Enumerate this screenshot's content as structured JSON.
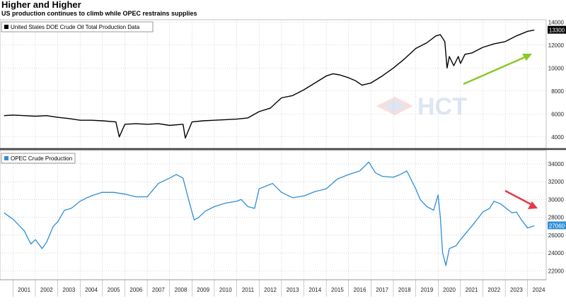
{
  "header": {
    "title": "Higher and Higher",
    "subtitle": "US production continues to climb while OPEC restrains supplies"
  },
  "watermark": {
    "text": "HCT"
  },
  "chart_data": [
    {
      "type": "line",
      "legend": "United States DOE Crude Oil Total Production Data",
      "color": "#000000",
      "last_value_label": "13300",
      "ylim": [
        3000,
        14200
      ],
      "yticks": [
        4000,
        6000,
        8000,
        10000,
        12000,
        14000
      ],
      "grid": true,
      "legend_position": "top-left",
      "trend_arrow": {
        "direction": "up",
        "color": "#8ac926"
      },
      "x": [
        2000.6,
        2001.0,
        2001.5,
        2002.0,
        2002.5,
        2003.0,
        2003.5,
        2004.0,
        2004.5,
        2005.0,
        2005.6,
        2005.75,
        2006.0,
        2006.5,
        2007.0,
        2007.5,
        2008.0,
        2008.6,
        2008.7,
        2009.0,
        2009.5,
        2010.0,
        2010.5,
        2011.0,
        2011.5,
        2012.0,
        2012.5,
        2013.0,
        2013.5,
        2014.0,
        2014.5,
        2015.0,
        2015.3,
        2015.6,
        2016.0,
        2016.3,
        2016.6,
        2017.0,
        2017.5,
        2018.0,
        2018.5,
        2019.0,
        2019.5,
        2019.9,
        2020.1,
        2020.3,
        2020.4,
        2020.5,
        2020.7,
        2020.9,
        2021.0,
        2021.2,
        2021.5,
        2022.0,
        2022.5,
        2023.0,
        2023.5,
        2024.0,
        2024.3
      ],
      "y": [
        5850,
        5900,
        5850,
        5800,
        5850,
        5700,
        5600,
        5450,
        5450,
        5400,
        5300,
        4000,
        5100,
        5150,
        5100,
        5150,
        5000,
        5100,
        3900,
        5300,
        5400,
        5450,
        5500,
        5550,
        5650,
        6200,
        6500,
        7400,
        7600,
        8100,
        8700,
        9300,
        9500,
        9400,
        9150,
        8900,
        8500,
        8700,
        9300,
        10000,
        10800,
        11700,
        12200,
        12800,
        12900,
        12300,
        10000,
        11000,
        10200,
        11000,
        10400,
        11200,
        11300,
        11800,
        12100,
        12300,
        12800,
        13200,
        13300
      ]
    },
    {
      "type": "line",
      "legend": "OPEC Crude Production",
      "color": "#2e8fd6",
      "last_value_label": "27060",
      "ylim": [
        21000,
        35500
      ],
      "yticks": [
        22000,
        24000,
        26000,
        28000,
        30000,
        32000,
        34000
      ],
      "grid": true,
      "legend_position": "top-left",
      "trend_arrow": {
        "direction": "down",
        "color": "#e63946"
      },
      "x": [
        2000.6,
        2001.0,
        2001.5,
        2001.8,
        2002.0,
        2002.3,
        2002.5,
        2002.8,
        2003.0,
        2003.3,
        2003.6,
        2004.0,
        2004.3,
        2004.6,
        2005.0,
        2005.5,
        2006.0,
        2006.5,
        2007.0,
        2007.5,
        2008.0,
        2008.3,
        2008.6,
        2008.9,
        2009.1,
        2009.3,
        2009.6,
        2010.0,
        2010.5,
        2011.0,
        2011.2,
        2011.5,
        2011.8,
        2012.0,
        2012.3,
        2012.6,
        2013.0,
        2013.5,
        2014.0,
        2014.5,
        2015.0,
        2015.5,
        2016.0,
        2016.5,
        2016.9,
        2017.2,
        2017.5,
        2018.0,
        2018.3,
        2018.6,
        2019.0,
        2019.2,
        2019.5,
        2019.8,
        2020.0,
        2020.1,
        2020.2,
        2020.35,
        2020.5,
        2020.8,
        2021.0,
        2021.5,
        2022.0,
        2022.3,
        2022.5,
        2022.8,
        2023.0,
        2023.3,
        2023.5,
        2023.7,
        2024.0,
        2024.3
      ],
      "y": [
        28500,
        27800,
        26500,
        25000,
        25500,
        24500,
        25200,
        27000,
        27500,
        28800,
        29000,
        29800,
        30200,
        30500,
        30800,
        30800,
        30600,
        30300,
        30300,
        31800,
        32400,
        32800,
        32400,
        29500,
        27700,
        28000,
        28700,
        29200,
        29600,
        29800,
        30000,
        29200,
        29000,
        31200,
        31500,
        31800,
        30800,
        30200,
        30400,
        30900,
        31200,
        32300,
        32800,
        33200,
        34200,
        33000,
        32600,
        32500,
        32800,
        33200,
        31200,
        30000,
        29200,
        28800,
        30500,
        28000,
        24000,
        22600,
        24500,
        24800,
        25500,
        27000,
        28600,
        29000,
        29800,
        29500,
        29100,
        28500,
        28600,
        27800,
        26800,
        27060
      ]
    }
  ],
  "x_axis": {
    "years": [
      "2001",
      "2002",
      "2003",
      "2004",
      "2005",
      "2006",
      "2007",
      "2008",
      "2009",
      "2010",
      "2011",
      "2012",
      "2013",
      "2014",
      "2015",
      "2016",
      "2017",
      "2018",
      "2019",
      "2020",
      "2021",
      "2022",
      "2023",
      "2024"
    ]
  }
}
